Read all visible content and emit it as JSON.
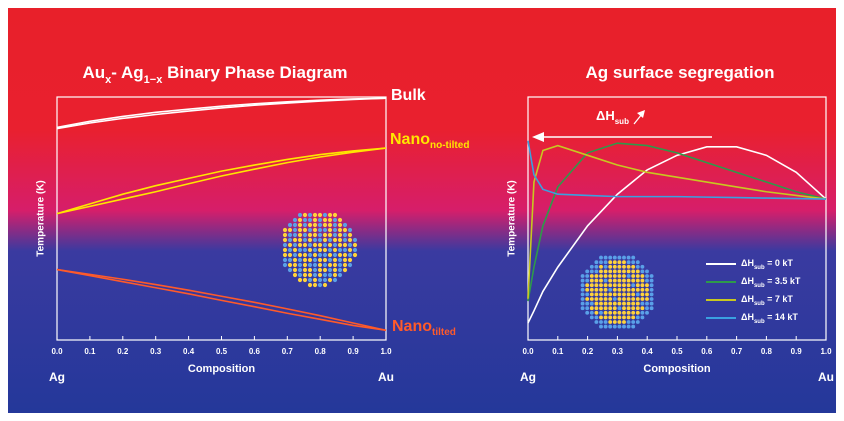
{
  "chart_data": [
    {
      "type": "line",
      "title": [
        {
          "text": "Au"
        },
        {
          "text": "x",
          "sub": true
        },
        {
          "text": "- Ag"
        },
        {
          "text": "1−x",
          "sub": true
        },
        {
          "text": " Binary Phase Diagram"
        }
      ],
      "x_label": "Composition",
      "y_label": "Temperature (K)",
      "x_start_label": "Ag",
      "x_end_label": "Au",
      "x": [
        0,
        0.1,
        0.2,
        0.3,
        0.4,
        0.5,
        0.6,
        0.7,
        0.8,
        0.9,
        1
      ],
      "xlim": [
        0,
        1
      ],
      "xticks": [
        {
          "value": 0,
          "label": "0.0"
        },
        0.1,
        0.2,
        0.3,
        0.4,
        0.5,
        0.6,
        0.7,
        0.8,
        0.9,
        {
          "value": 1,
          "label": "1.0"
        }
      ],
      "ylim": [
        0,
        1
      ],
      "series": [
        {
          "name": "Bulk",
          "color": "#ffffff",
          "values": [
            0.875,
            0.9,
            0.92,
            0.937,
            0.95,
            0.962,
            0.972,
            0.98,
            0.987,
            0.992,
            0.995
          ],
          "values2": [
            0.87,
            0.893,
            0.912,
            0.928,
            0.942,
            0.955,
            0.966,
            0.975,
            0.983,
            0.99,
            0.995
          ]
        },
        {
          "name": "Nano",
          "name_sub": "no-tilted",
          "color": "#ffe600",
          "values": [
            0.52,
            0.56,
            0.6,
            0.635,
            0.665,
            0.695,
            0.72,
            0.743,
            0.763,
            0.778,
            0.79
          ],
          "values2": [
            0.52,
            0.55,
            0.58,
            0.61,
            0.643,
            0.675,
            0.703,
            0.73,
            0.753,
            0.773,
            0.79
          ]
        },
        {
          "name": "Nano",
          "name_sub": "tilted",
          "color": "#ff5a2a",
          "values": [
            0.29,
            0.27,
            0.25,
            0.228,
            0.205,
            0.18,
            0.155,
            0.128,
            0.1,
            0.07,
            0.04
          ],
          "values2": [
            0.29,
            0.265,
            0.24,
            0.215,
            0.19,
            0.163,
            0.137,
            0.11,
            0.085,
            0.06,
            0.04
          ]
        }
      ]
    },
    {
      "type": "line",
      "title": [
        {
          "text": "Ag surface segregation"
        }
      ],
      "x_label": "Composition",
      "y_label": "Temperature (K)",
      "x_start_label": "Ag",
      "x_end_label": "Au",
      "annotation": [
        {
          "text": "ΔH"
        },
        {
          "text": "sub",
          "sub": true
        }
      ],
      "x": [
        0,
        0.02,
        0.05,
        0.1,
        0.2,
        0.3,
        0.4,
        0.5,
        0.6,
        0.7,
        0.8,
        0.9,
        1
      ],
      "xlim": [
        0,
        1
      ],
      "xticks": [
        {
          "value": 0,
          "label": "0.0"
        },
        0.1,
        0.2,
        0.3,
        0.4,
        0.5,
        0.6,
        0.7,
        0.8,
        0.9,
        {
          "value": 1,
          "label": "1.0"
        }
      ],
      "ylim": [
        0,
        1
      ],
      "series": [
        {
          "name": "ΔH",
          "name_sub": "sub",
          "name_suffix": " = 0 kT",
          "color": "#ffffff",
          "values": [
            0.07,
            0.12,
            0.2,
            0.3,
            0.47,
            0.6,
            0.7,
            0.76,
            0.795,
            0.795,
            0.76,
            0.69,
            0.58
          ]
        },
        {
          "name": "ΔH",
          "name_sub": "sub",
          "name_suffix": " = 3.5 kT",
          "color": "#2e9a4a",
          "values": [
            0.16,
            0.3,
            0.47,
            0.63,
            0.77,
            0.81,
            0.8,
            0.77,
            0.73,
            0.69,
            0.65,
            0.61,
            0.58
          ]
        },
        {
          "name": "ΔH",
          "name_sub": "sub",
          "name_suffix": " = 7 kT",
          "color": "#c8c820",
          "values": [
            0.17,
            0.65,
            0.78,
            0.8,
            0.76,
            0.72,
            0.69,
            0.67,
            0.65,
            0.63,
            0.61,
            0.595,
            0.58
          ]
        },
        {
          "name": "ΔH",
          "name_sub": "sub",
          "name_suffix": " = 14 kT",
          "color": "#3aa0e0",
          "values": [
            0.82,
            0.68,
            0.62,
            0.6,
            0.595,
            0.59,
            0.59,
            0.59,
            0.588,
            0.586,
            0.584,
            0.582,
            0.58
          ]
        }
      ]
    }
  ]
}
